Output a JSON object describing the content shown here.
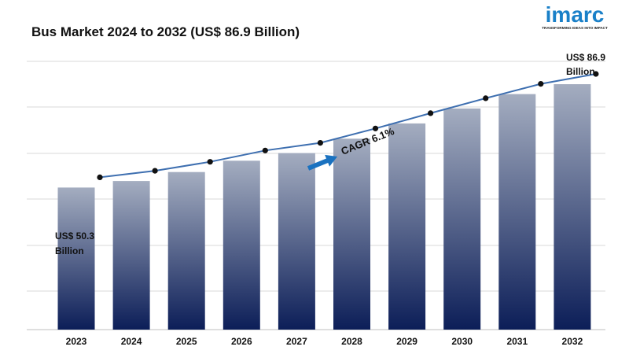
{
  "title": "Bus Market 2024 to 2032 (US$ 86.9 Billion)",
  "logo": {
    "word": "imarc",
    "tagline": "TRANSFORMING IDEAS INTO IMPACT",
    "color": "#1a80c8"
  },
  "chart_data": {
    "type": "bar",
    "categories": [
      "2023",
      "2024",
      "2025",
      "2026",
      "2027",
      "2028",
      "2029",
      "2030",
      "2031",
      "2032"
    ],
    "values": [
      50.3,
      52.6,
      55.8,
      59.8,
      62.5,
      67.6,
      73.0,
      78.3,
      83.4,
      86.9
    ],
    "trend_line": true,
    "annotations": {
      "start_value": "US$ 50.3",
      "start_unit": "Billion",
      "end_value": "US$ 86.9",
      "end_unit": "Billion",
      "cagr": "CAGR 6.1%"
    },
    "xlabel": "",
    "ylabel": "",
    "grid": true,
    "legend": "none",
    "colors": {
      "bar_top": "#a4adc0",
      "bar_bottom": "#0c1e58",
      "line": "#3e6fb0",
      "marker": "#111111",
      "arrow": "#1a72c0",
      "grid": "#d9d9d9"
    }
  }
}
